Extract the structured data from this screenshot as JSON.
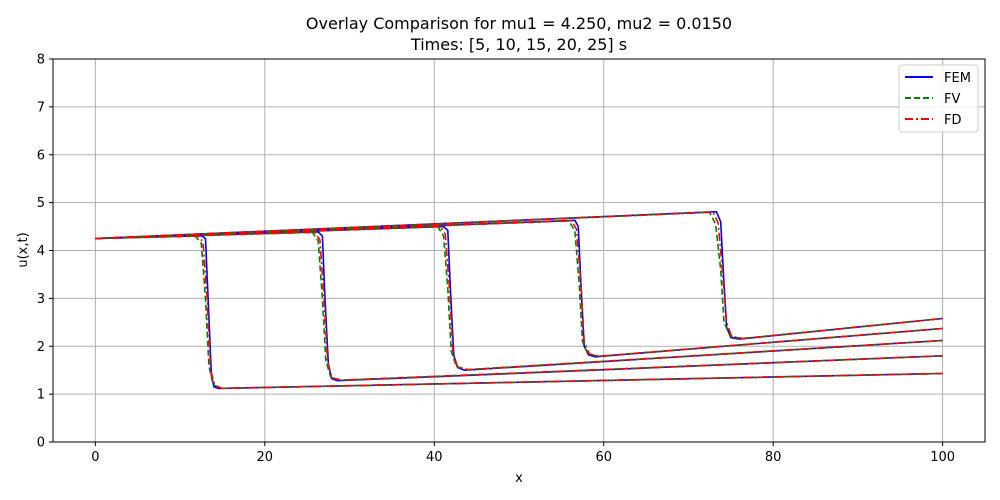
{
  "chart_data": {
    "type": "line",
    "title": "Overlay Comparison for mu1 = 4.250, mu2 = 0.0150",
    "subtitle": "Times: [5, 10, 15, 20, 25] s",
    "xlabel": "x",
    "ylabel": "u(x,t)",
    "xlim": [
      -5,
      105
    ],
    "ylim": [
      0,
      8
    ],
    "xticks": [
      0,
      20,
      40,
      60,
      80,
      100
    ],
    "yticks": [
      0,
      1,
      2,
      3,
      4,
      5,
      6,
      7,
      8
    ],
    "grid": true,
    "legend_position": "top-right",
    "colors": {
      "FEM": "#0000ff",
      "FV": "#008000",
      "FD": "#ff0000"
    },
    "times": [
      5,
      10,
      15,
      20,
      25
    ],
    "series": [
      {
        "name": "FEM",
        "style": "solid",
        "profiles": [
          {
            "time": 5,
            "x": [
              0,
              12.5,
              13.0,
              13.3,
              13.7,
              14.0,
              14.5,
              100
            ],
            "y": [
              4.25,
              4.31,
              4.25,
              3.0,
              1.4,
              1.15,
              1.12,
              1.43
            ]
          },
          {
            "time": 10,
            "x": [
              0,
              26.3,
              26.8,
              27.1,
              27.5,
              27.9,
              28.6,
              100
            ],
            "y": [
              4.25,
              4.39,
              4.3,
              3.0,
              1.6,
              1.32,
              1.28,
              1.8
            ]
          },
          {
            "time": 15,
            "x": [
              0,
              41.1,
              41.6,
              41.9,
              42.3,
              42.8,
              43.6,
              100
            ],
            "y": [
              4.25,
              4.5,
              4.42,
              3.2,
              1.8,
              1.55,
              1.5,
              2.12
            ]
          },
          {
            "time": 20,
            "x": [
              0,
              56.6,
              57.0,
              57.3,
              57.7,
              58.2,
              59.0,
              100
            ],
            "y": [
              4.25,
              4.63,
              4.5,
              3.3,
              2.0,
              1.82,
              1.78,
              2.37
            ]
          },
          {
            "time": 25,
            "x": [
              0,
              73.3,
              73.8,
              74.1,
              74.5,
              75.0,
              76.0,
              100
            ],
            "y": [
              4.25,
              4.81,
              4.6,
              3.6,
              2.4,
              2.18,
              2.15,
              2.58
            ]
          }
        ]
      },
      {
        "name": "FV",
        "style": "dashed",
        "profiles": [
          {
            "time": 5,
            "x": [
              0,
              11.8,
              12.5,
              13.0,
              13.4,
              13.9,
              14.8,
              100
            ],
            "y": [
              4.25,
              4.3,
              4.15,
              3.0,
              1.6,
              1.2,
              1.12,
              1.43
            ]
          },
          {
            "time": 10,
            "x": [
              0,
              25.6,
              26.3,
              26.8,
              27.2,
              27.8,
              28.9,
              100
            ],
            "y": [
              4.25,
              4.38,
              4.2,
              3.0,
              1.7,
              1.35,
              1.29,
              1.8
            ]
          },
          {
            "time": 15,
            "x": [
              0,
              40.4,
              41.1,
              41.6,
              42.0,
              42.6,
              43.8,
              100
            ],
            "y": [
              4.25,
              4.5,
              4.3,
              3.2,
              1.9,
              1.58,
              1.51,
              2.12
            ]
          },
          {
            "time": 20,
            "x": [
              0,
              55.9,
              56.6,
              57.1,
              57.5,
              58.1,
              59.3,
              100
            ],
            "y": [
              4.25,
              4.62,
              4.4,
              3.3,
              2.1,
              1.85,
              1.79,
              2.37
            ]
          },
          {
            "time": 25,
            "x": [
              0,
              72.5,
              73.2,
              73.8,
              74.2,
              74.9,
              76.2,
              100
            ],
            "y": [
              4.25,
              4.8,
              4.55,
              3.6,
              2.5,
              2.22,
              2.16,
              2.58
            ]
          }
        ]
      },
      {
        "name": "FD",
        "style": "dashdot",
        "profiles": [
          {
            "time": 5,
            "x": [
              0,
              12.1,
              12.7,
              13.2,
              13.6,
              14.1,
              15.0,
              100
            ],
            "y": [
              4.25,
              4.3,
              4.18,
              3.0,
              1.5,
              1.18,
              1.12,
              1.43
            ]
          },
          {
            "time": 10,
            "x": [
              0,
              25.9,
              26.5,
              27.0,
              27.4,
              27.9,
              29.1,
              100
            ],
            "y": [
              4.25,
              4.38,
              4.22,
              3.0,
              1.7,
              1.34,
              1.29,
              1.8
            ]
          },
          {
            "time": 15,
            "x": [
              0,
              40.7,
              41.3,
              41.8,
              42.2,
              42.7,
              44.0,
              100
            ],
            "y": [
              4.25,
              4.5,
              4.34,
              3.2,
              1.9,
              1.57,
              1.51,
              2.12
            ]
          },
          {
            "time": 20,
            "x": [
              0,
              56.2,
              56.8,
              57.3,
              57.7,
              58.3,
              59.5,
              100
            ],
            "y": [
              4.25,
              4.62,
              4.44,
              3.3,
              2.1,
              1.84,
              1.79,
              2.37
            ]
          },
          {
            "time": 25,
            "x": [
              0,
              72.9,
              73.5,
              74.0,
              74.5,
              75.1,
              76.5,
              100
            ],
            "y": [
              4.25,
              4.8,
              4.58,
              3.6,
              2.5,
              2.2,
              2.16,
              2.58
            ]
          }
        ]
      }
    ]
  }
}
